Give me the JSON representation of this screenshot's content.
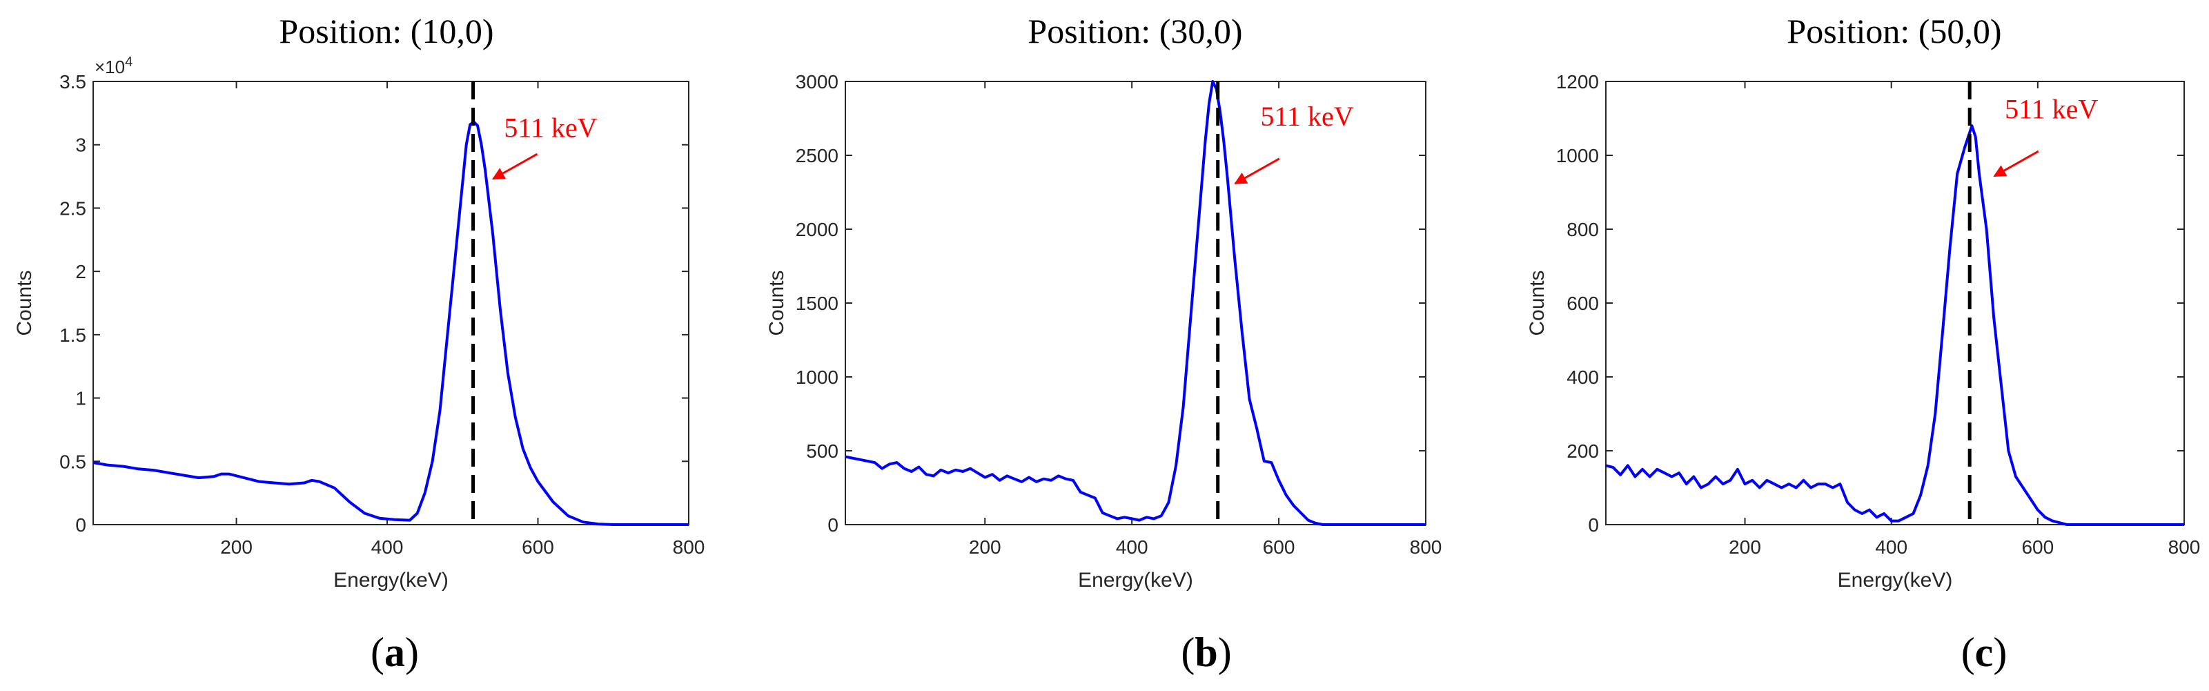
{
  "chart_data": [
    {
      "type": "line",
      "panel_label": "a",
      "title": "Position: (10,0)",
      "xlabel": "Energy(keV)",
      "ylabel": "Counts",
      "xlim": [
        10,
        800
      ],
      "ylim": [
        0,
        35000
      ],
      "xticks": [
        200,
        400,
        600,
        800
      ],
      "yticks": [
        0,
        5000,
        10000,
        15000,
        20000,
        25000,
        30000,
        35000
      ],
      "ytick_labels": [
        "0",
        "0.5",
        "1",
        "1.5",
        "2",
        "2.5",
        "3",
        "3.5"
      ],
      "y_exponent_label": "×10",
      "y_exponent_power": "4",
      "reference_line_x": 514,
      "annotation": {
        "text": "511 keV",
        "arrow_to": [
          535,
          27200
        ],
        "label_at": [
          555,
          30600
        ]
      },
      "series": [
        {
          "name": "spectrum",
          "color": "#0000ff",
          "x": [
            10,
            30,
            50,
            70,
            90,
            110,
            130,
            150,
            170,
            180,
            190,
            210,
            230,
            250,
            270,
            290,
            300,
            310,
            330,
            350,
            370,
            390,
            410,
            430,
            440,
            450,
            460,
            470,
            480,
            490,
            500,
            505,
            510,
            515,
            520,
            525,
            530,
            540,
            550,
            560,
            570,
            580,
            590,
            600,
            620,
            640,
            660,
            680,
            700,
            720,
            740,
            760,
            780,
            800
          ],
          "values": [
            4900,
            4700,
            4600,
            4400,
            4300,
            4100,
            3900,
            3700,
            3800,
            4000,
            4000,
            3700,
            3400,
            3300,
            3200,
            3300,
            3500,
            3400,
            2900,
            1800,
            900,
            500,
            400,
            350,
            900,
            2500,
            5000,
            9000,
            15000,
            21000,
            27000,
            30000,
            31600,
            31800,
            31500,
            30000,
            28000,
            23000,
            17000,
            12000,
            8500,
            6000,
            4500,
            3400,
            1800,
            700,
            200,
            50,
            0,
            0,
            0,
            0,
            0,
            0
          ]
        }
      ]
    },
    {
      "type": "line",
      "panel_label": "b",
      "title": "Position: (30,0)",
      "xlabel": "Energy(keV)",
      "ylabel": "Counts",
      "xlim": [
        10,
        800
      ],
      "ylim": [
        0,
        3000
      ],
      "xticks": [
        200,
        400,
        600,
        800
      ],
      "yticks": [
        0,
        500,
        1000,
        1500,
        2000,
        2500,
        3000
      ],
      "ytick_labels": [
        "0",
        "500",
        "1000",
        "1500",
        "2000",
        "2500",
        "3000"
      ],
      "reference_line_x": 517,
      "annotation": {
        "text": "511 keV",
        "arrow_to": [
          535,
          2300
        ],
        "label_at": [
          575,
          2700
        ]
      },
      "series": [
        {
          "name": "spectrum",
          "color": "#0000ff",
          "x": [
            10,
            30,
            50,
            60,
            70,
            80,
            90,
            100,
            110,
            120,
            130,
            140,
            150,
            160,
            170,
            180,
            190,
            200,
            210,
            220,
            230,
            240,
            250,
            260,
            270,
            280,
            290,
            300,
            310,
            320,
            330,
            340,
            350,
            360,
            370,
            380,
            390,
            400,
            410,
            420,
            430,
            440,
            450,
            460,
            470,
            480,
            490,
            500,
            505,
            510,
            515,
            520,
            525,
            530,
            540,
            550,
            560,
            570,
            580,
            590,
            600,
            610,
            620,
            630,
            640,
            650,
            660,
            700,
            800
          ],
          "values": [
            460,
            440,
            420,
            380,
            410,
            420,
            380,
            360,
            390,
            340,
            330,
            370,
            350,
            370,
            360,
            380,
            350,
            320,
            340,
            300,
            330,
            310,
            290,
            320,
            290,
            310,
            300,
            330,
            310,
            300,
            220,
            200,
            180,
            80,
            60,
            40,
            50,
            40,
            30,
            50,
            40,
            60,
            150,
            400,
            800,
            1400,
            2000,
            2600,
            2850,
            3000,
            2950,
            2800,
            2600,
            2350,
            1800,
            1300,
            850,
            650,
            430,
            420,
            300,
            200,
            130,
            80,
            30,
            10,
            0,
            0,
            0
          ]
        }
      ]
    },
    {
      "type": "line",
      "panel_label": "c",
      "title": "Position: (50,0)",
      "xlabel": "Energy(keV)",
      "ylabel": "Counts",
      "xlim": [
        10,
        800
      ],
      "ylim": [
        0,
        1200
      ],
      "xticks": [
        200,
        400,
        600,
        800
      ],
      "yticks": [
        0,
        200,
        400,
        600,
        800,
        1000,
        1200
      ],
      "ytick_labels": [
        "0",
        "200",
        "400",
        "600",
        "800",
        "1000",
        "1200"
      ],
      "reference_line_x": 507,
      "annotation": {
        "text": "511 keV",
        "arrow_to": [
          535,
          940
        ],
        "label_at": [
          555,
          1100
        ]
      },
      "series": [
        {
          "name": "spectrum",
          "color": "#0000ff",
          "x": [
            10,
            20,
            30,
            40,
            50,
            60,
            70,
            80,
            90,
            100,
            110,
            120,
            130,
            140,
            150,
            160,
            170,
            180,
            190,
            200,
            210,
            220,
            230,
            240,
            250,
            260,
            270,
            280,
            290,
            300,
            310,
            320,
            330,
            340,
            350,
            360,
            370,
            380,
            390,
            400,
            410,
            420,
            430,
            440,
            450,
            460,
            470,
            480,
            490,
            500,
            505,
            510,
            515,
            520,
            530,
            540,
            550,
            560,
            570,
            580,
            590,
            600,
            610,
            620,
            630,
            640,
            650,
            700,
            800
          ],
          "values": [
            160,
            155,
            135,
            160,
            130,
            150,
            130,
            150,
            140,
            130,
            140,
            110,
            130,
            100,
            110,
            130,
            110,
            120,
            150,
            110,
            120,
            100,
            120,
            110,
            100,
            110,
            100,
            120,
            100,
            110,
            110,
            100,
            110,
            60,
            40,
            30,
            40,
            20,
            30,
            10,
            10,
            20,
            30,
            80,
            160,
            300,
            520,
            750,
            950,
            1020,
            1050,
            1080,
            1050,
            950,
            800,
            560,
            380,
            200,
            130,
            100,
            70,
            40,
            20,
            10,
            5,
            0,
            0,
            0,
            0
          ]
        }
      ]
    }
  ]
}
